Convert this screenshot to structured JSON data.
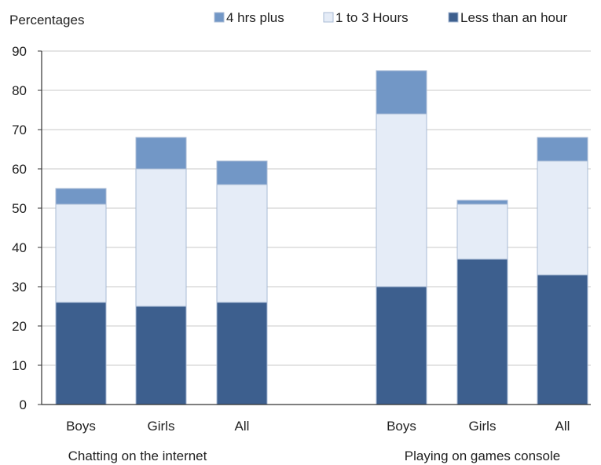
{
  "chart_data": {
    "type": "bar",
    "stacked": true,
    "ylabel": "Percentages",
    "ylim": [
      0,
      90
    ],
    "yticks": [
      0,
      10,
      20,
      30,
      40,
      50,
      60,
      70,
      80,
      90
    ],
    "grid": true,
    "legend_position": "top",
    "groups": [
      {
        "label": "Chatting on the internet",
        "categories": [
          "Boys",
          "Girls",
          "All"
        ]
      },
      {
        "label": "Playing on games console",
        "categories": [
          "Boys",
          "Girls",
          "All"
        ]
      }
    ],
    "categories": [
      "Boys",
      "Girls",
      "All",
      "Boys",
      "Girls",
      "All"
    ],
    "series": [
      {
        "name": "Less than an hour",
        "color": "#3d5f8e",
        "values": [
          26,
          25,
          26,
          30,
          37,
          33
        ]
      },
      {
        "name": "1 to 3 Hours",
        "color": "#e5ecf7",
        "values": [
          25,
          35,
          30,
          44,
          14,
          29
        ]
      },
      {
        "name": "4 hrs plus",
        "color": "#7297c6",
        "values": [
          4,
          8,
          6,
          11,
          1,
          6
        ]
      }
    ],
    "legend_order": [
      "4 hrs plus",
      "1 to 3 Hours",
      "Less than an hour"
    ]
  }
}
